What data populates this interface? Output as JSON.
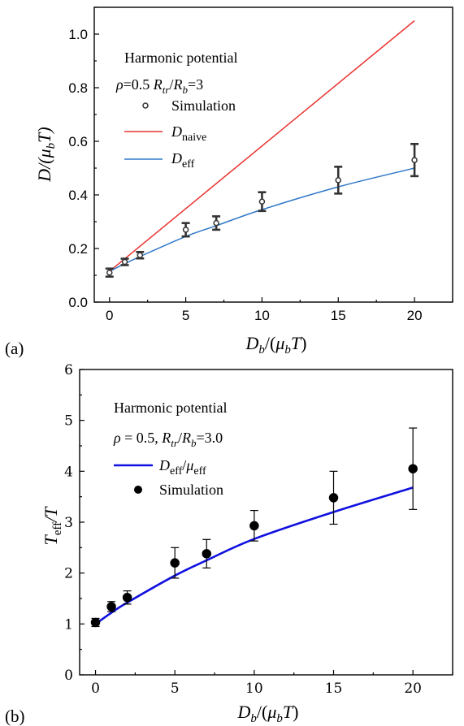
{
  "chart_data": [
    {
      "type": "line",
      "panel_label": "(a)",
      "xlabel": "D_b/(μ_bT)",
      "ylabel": "D/(μ_bT)",
      "xlim": [
        -1,
        22.5
      ],
      "ylim": [
        0,
        1.1
      ],
      "xticks": [
        "0",
        "5",
        "10",
        "15",
        "20"
      ],
      "yticks": [
        "0.0",
        "0.2",
        "0.4",
        "0.6",
        "0.8",
        "1.0"
      ],
      "legend_title": "Harmonic potential",
      "legend_params": "ρ=0.5 R_tr/R_b=3",
      "legend": [
        "Simulation",
        "D_naive",
        "D_eff"
      ],
      "grid": false,
      "series": [
        {
          "name": "Simulation",
          "kind": "scatter-errorbar",
          "x": [
            0,
            1,
            2,
            5,
            7,
            10,
            15,
            20
          ],
          "y": [
            0.11,
            0.15,
            0.175,
            0.27,
            0.295,
            0.375,
            0.455,
            0.53
          ],
          "err": [
            0.015,
            0.012,
            0.012,
            0.025,
            0.025,
            0.035,
            0.05,
            0.06
          ],
          "color": "#333333"
        },
        {
          "name": "D_naive",
          "kind": "line",
          "x": [
            0,
            20
          ],
          "y": [
            0.115,
            1.05
          ],
          "color": "#e8332f"
        },
        {
          "name": "D_eff",
          "kind": "line",
          "x": [
            0,
            1,
            2,
            5,
            7,
            10,
            15,
            20
          ],
          "y": [
            0.115,
            0.143,
            0.17,
            0.245,
            0.285,
            0.345,
            0.43,
            0.5
          ],
          "color": "#2f78c8"
        }
      ]
    },
    {
      "type": "line",
      "panel_label": "(b)",
      "xlabel": "D_b/(μ_bT)",
      "ylabel": "T_eff/T",
      "xlim": [
        -1,
        22.5
      ],
      "ylim": [
        0,
        6
      ],
      "xticks": [
        "0",
        "5",
        "10",
        "15",
        "20"
      ],
      "yticks": [
        "0",
        "1",
        "2",
        "3",
        "4",
        "5",
        "6"
      ],
      "legend_title": "Harmonic potential",
      "legend_params": "ρ = 0.5, R_tr/R_b=3.0",
      "legend": [
        "D_eff/μ_eff",
        "Simulation"
      ],
      "grid": false,
      "series": [
        {
          "name": "D_eff/μ_eff",
          "kind": "line",
          "x": [
            0,
            1,
            2,
            5,
            7,
            10,
            15,
            20
          ],
          "y": [
            1.0,
            1.22,
            1.42,
            1.95,
            2.25,
            2.67,
            3.2,
            3.68
          ],
          "color": "#1010e0"
        },
        {
          "name": "Simulation",
          "kind": "scatter-errorbar",
          "x": [
            0,
            1,
            2,
            5,
            7,
            10,
            15,
            20
          ],
          "y": [
            1.03,
            1.34,
            1.52,
            2.2,
            2.38,
            2.93,
            3.48,
            4.05
          ],
          "err": [
            0.08,
            0.1,
            0.13,
            0.3,
            0.28,
            0.3,
            0.52,
            0.8
          ],
          "color": "#000000"
        }
      ]
    }
  ]
}
